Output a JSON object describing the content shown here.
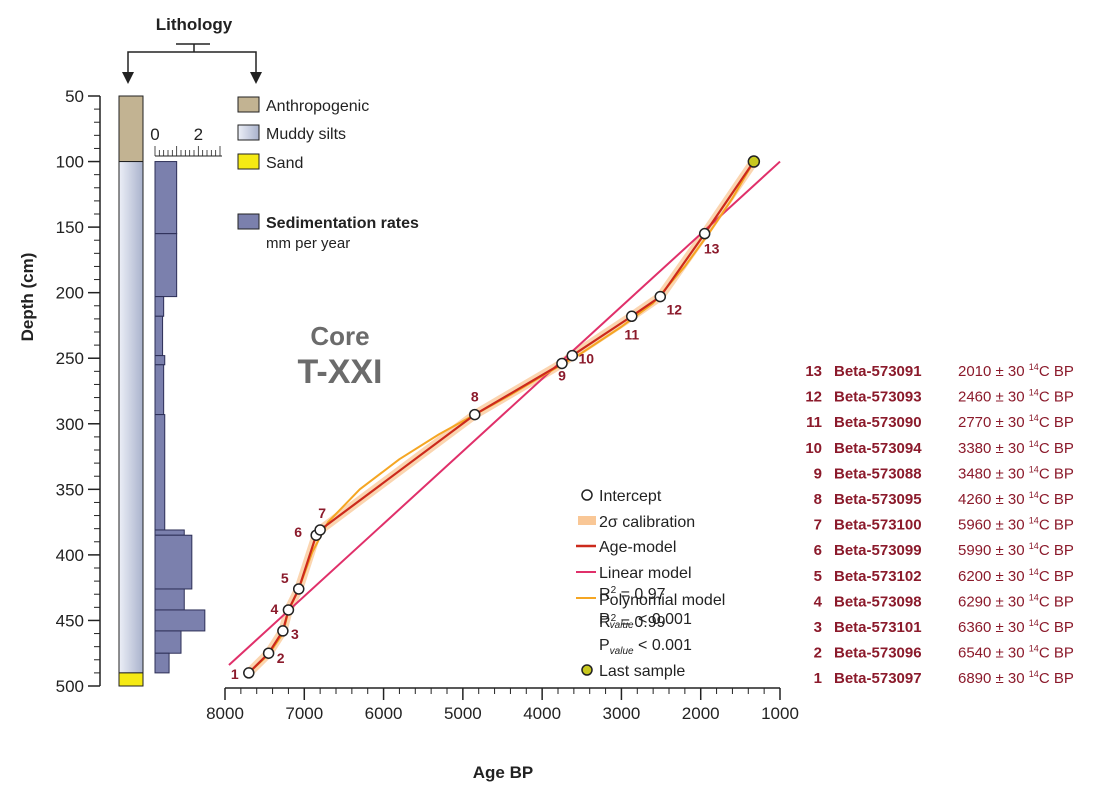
{
  "colors": {
    "anthropogenic": "#c2b392",
    "muddy_silts_light": "#eceff7",
    "muddy_silts_dark": "#a9b2cc",
    "sand": "#f5ea14",
    "sed_rate": "#7b80ad",
    "sed_rate_stroke": "#2d2f57",
    "age_model": "#cc2a1c",
    "linear": "#e0306a",
    "polynomial": "#f5a623",
    "calibration": "#f9c796",
    "last_sample": "#c8c81e",
    "date_label": "#8b1a2b"
  },
  "chart_data": {
    "type": "scatter",
    "title": "Core",
    "subtitle": "T-XXI",
    "xlabel": "Age BP",
    "ylabel": "Depth (cm)",
    "x_reversed": true,
    "y_reversed": true,
    "xlim": [
      8000,
      1000
    ],
    "ylim": [
      50,
      500
    ],
    "xticks": [
      "8000",
      "7000",
      "6000",
      "5000",
      "4000",
      "3000",
      "2000",
      "1000"
    ],
    "yticks": [
      "50",
      "100",
      "150",
      "200",
      "250",
      "300",
      "350",
      "400",
      "450",
      "500"
    ],
    "lithology": {
      "title": "Lithology",
      "units": [
        {
          "name": "Anthropogenic",
          "top": 50,
          "bottom": 100
        },
        {
          "name": "Muddy silts",
          "top": 100,
          "bottom": 490
        },
        {
          "name": "Sand",
          "top": 490,
          "bottom": 500
        }
      ]
    },
    "sedimentation_rates": {
      "title": "Sedimentation rates",
      "unit": "mm per year",
      "axis_ticks": [
        "0",
        "2"
      ],
      "axis_max": 3,
      "intervals": [
        {
          "top": 100,
          "bottom": 155,
          "value": 1.0
        },
        {
          "top": 155,
          "bottom": 203,
          "value": 1.0
        },
        {
          "top": 203,
          "bottom": 218,
          "value": 0.4
        },
        {
          "top": 218,
          "bottom": 248,
          "value": 0.35
        },
        {
          "top": 248,
          "bottom": 255,
          "value": 0.45
        },
        {
          "top": 255,
          "bottom": 293,
          "value": 0.4
        },
        {
          "top": 293,
          "bottom": 381,
          "value": 0.45
        },
        {
          "top": 381,
          "bottom": 385,
          "value": 1.35
        },
        {
          "top": 385,
          "bottom": 426,
          "value": 1.7
        },
        {
          "top": 426,
          "bottom": 442,
          "value": 1.35
        },
        {
          "top": 442,
          "bottom": 458,
          "value": 2.3
        },
        {
          "top": 458,
          "bottom": 475,
          "value": 1.2
        },
        {
          "top": 475,
          "bottom": 490,
          "value": 0.65
        }
      ]
    },
    "intercepts": [
      {
        "label": "1",
        "age": 7700,
        "depth": 490
      },
      {
        "label": "2",
        "age": 7450,
        "depth": 475
      },
      {
        "label": "3",
        "age": 7270,
        "depth": 458
      },
      {
        "label": "4",
        "age": 7200,
        "depth": 442
      },
      {
        "label": "5",
        "age": 7070,
        "depth": 426
      },
      {
        "label": "6",
        "age": 6850,
        "depth": 385
      },
      {
        "label": "7",
        "age": 6800,
        "depth": 381
      },
      {
        "label": "8",
        "age": 4850,
        "depth": 293
      },
      {
        "label": "9",
        "age": 3750,
        "depth": 254
      },
      {
        "label": "10",
        "age": 3620,
        "depth": 248
      },
      {
        "label": "11",
        "age": 2870,
        "depth": 218
      },
      {
        "label": "12",
        "age": 2510,
        "depth": 203
      },
      {
        "label": "13",
        "age": 1950,
        "depth": 155
      }
    ],
    "last_sample": {
      "age": 1330,
      "depth": 100
    },
    "linear_model": {
      "x": [
        7950,
        1000
      ],
      "y": [
        484,
        100
      ]
    },
    "polynomial_model": {
      "x": [
        7700,
        7450,
        7270,
        7200,
        7070,
        6900,
        6700,
        6300,
        5800,
        5300,
        4850,
        4400,
        3900,
        3500,
        3000,
        2600,
        2200,
        1900,
        1600,
        1330
      ],
      "y": [
        490,
        476,
        460,
        443,
        426,
        398,
        375,
        350,
        327,
        308,
        293,
        278,
        260,
        246,
        226,
        208,
        180,
        155,
        128,
        100
      ]
    },
    "legend": {
      "intercept": "Intercept",
      "calibration_sigma": "2σ calibration",
      "age_model": "Age-model",
      "linear_model": "Linear model",
      "linear_r2_prefix": "R",
      "linear_r2_sup": "2",
      "linear_r2_value": " = 0.97",
      "linear_p_prefix": "P",
      "linear_p_sub": "value",
      "linear_p_value": " < 0.001",
      "polynomial_model": "Polynomial model",
      "poly_r2_prefix": "R",
      "poly_r2_sup": "2",
      "poly_r2_value": " = 0.99",
      "poly_p_prefix": "P",
      "poly_p_sub": "value",
      "poly_p_value": " < 0.001",
      "last_sample": "Last sample"
    },
    "dates": [
      {
        "num": "13",
        "lab": "Beta-573091",
        "age": "2010 ± 30",
        "sup": "14",
        "unit": "C BP"
      },
      {
        "num": "12",
        "lab": "Beta-573093",
        "age": "2460 ± 30",
        "sup": "14",
        "unit": "C BP"
      },
      {
        "num": "11",
        "lab": "Beta-573090",
        "age": "2770 ± 30",
        "sup": "14",
        "unit": "C BP"
      },
      {
        "num": "10",
        "lab": "Beta-573094",
        "age": "3380 ± 30",
        "sup": "14",
        "unit": "C BP"
      },
      {
        "num": "9",
        "lab": "Beta-573088",
        "age": "3480 ± 30",
        "sup": "14",
        "unit": "C BP"
      },
      {
        "num": "8",
        "lab": "Beta-573095",
        "age": "4260 ± 30",
        "sup": "14",
        "unit": "C BP"
      },
      {
        "num": "7",
        "lab": "Beta-573100",
        "age": "5960 ± 30",
        "sup": "14",
        "unit": "C BP"
      },
      {
        "num": "6",
        "lab": "Beta-573099",
        "age": "5990 ± 30",
        "sup": "14",
        "unit": "C BP"
      },
      {
        "num": "5",
        "lab": "Beta-573102",
        "age": "6200 ± 30",
        "sup": "14",
        "unit": "C BP"
      },
      {
        "num": "4",
        "lab": "Beta-573098",
        "age": "6290 ± 30",
        "sup": "14",
        "unit": "C BP"
      },
      {
        "num": "3",
        "lab": "Beta-573101",
        "age": "6360 ± 30",
        "sup": "14",
        "unit": "C BP"
      },
      {
        "num": "2",
        "lab": "Beta-573096",
        "age": "6540 ± 30",
        "sup": "14",
        "unit": "C BP"
      },
      {
        "num": "1",
        "lab": "Beta-573097",
        "age": "6890 ± 30",
        "sup": "14",
        "unit": "C BP"
      }
    ]
  }
}
